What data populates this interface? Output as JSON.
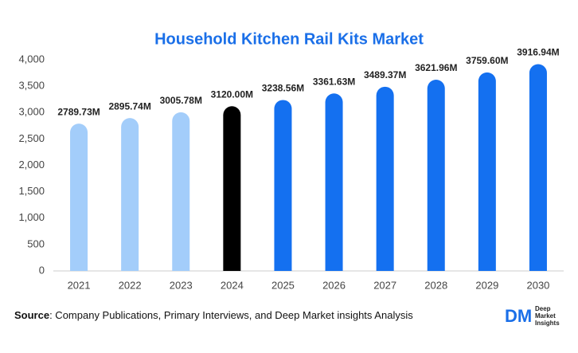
{
  "chart_data": {
    "type": "bar",
    "title": "Household Kitchen Rail Kits Market",
    "categories": [
      "2021",
      "2022",
      "2023",
      "2024",
      "2025",
      "2026",
      "2027",
      "2028",
      "2029",
      "2030"
    ],
    "values": [
      2789.73,
      2895.74,
      3005.78,
      3120.0,
      3238.56,
      3361.63,
      3489.37,
      3621.96,
      3759.6,
      3916.94
    ],
    "value_labels": [
      "2789.73M",
      "2895.74M",
      "3005.78M",
      "3120.00M",
      "3238.56M",
      "3361.63M",
      "3489.37M",
      "3621.96M",
      "3759.60M",
      "3916.94M"
    ],
    "colors": [
      "#a3cdfa",
      "#a3cdfa",
      "#a3cdfa",
      "#000000",
      "#1470f0",
      "#1470f0",
      "#1470f0",
      "#1470f0",
      "#1470f0",
      "#1470f0"
    ],
    "ylim": [
      0,
      4000
    ],
    "yticks": [
      0,
      500,
      {
        "value": 1000,
        "label": "1,000"
      },
      {
        "value": 1500,
        "label": "1,500"
      },
      {
        "value": 2000,
        "label": "2,000"
      },
      {
        "value": 2500,
        "label": "2,500"
      },
      {
        "value": 3000,
        "label": "3,000"
      },
      {
        "value": 3500,
        "label": "3,500"
      },
      {
        "value": 4000,
        "label": "4,000"
      }
    ],
    "grid": false
  },
  "source": {
    "label": "Source",
    "text": ": Company Publications, Primary Interviews, and Deep Market insights Analysis"
  },
  "logo": {
    "mark": "DM",
    "lines": [
      "Deep",
      "Market",
      "Insights"
    ]
  }
}
